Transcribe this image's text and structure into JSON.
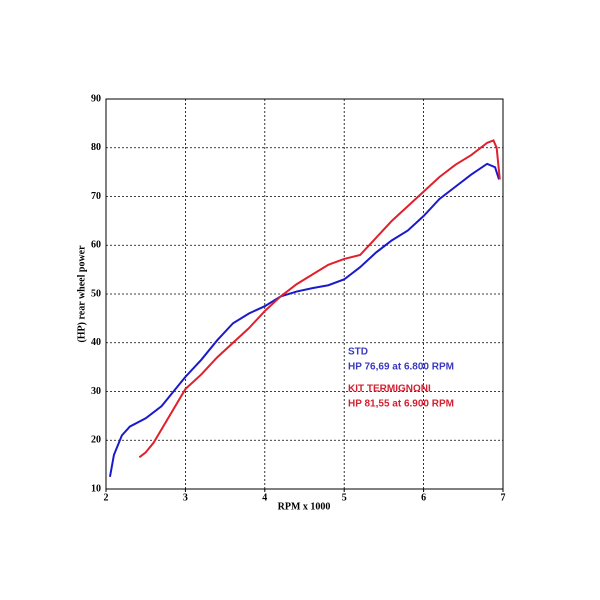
{
  "chart_data": {
    "type": "line",
    "x_label": "RPM x 1000",
    "y_label": "(HP) rear wheel power",
    "xlim": [
      2,
      7
    ],
    "xticks": [
      2,
      3,
      4,
      5,
      6,
      7
    ],
    "ylim": [
      10,
      90
    ],
    "yticks": [
      10,
      20,
      30,
      40,
      50,
      60,
      70,
      80,
      90
    ],
    "grid": true,
    "series": [
      {
        "name": "STD",
        "color": "#1a1acc",
        "x": [
          2.05,
          2.1,
          2.2,
          2.3,
          2.5,
          2.7,
          2.9,
          3.0,
          3.2,
          3.4,
          3.6,
          3.8,
          4.0,
          4.2,
          4.4,
          4.6,
          4.8,
          5.0,
          5.2,
          5.4,
          5.6,
          5.8,
          6.0,
          6.2,
          6.4,
          6.6,
          6.8,
          6.9,
          6.95
        ],
        "values": [
          12.5,
          17,
          21,
          22.8,
          24.5,
          27,
          31,
          33,
          36.5,
          40.5,
          44,
          46,
          47.5,
          49.5,
          50.5,
          51.2,
          51.8,
          53,
          55.5,
          58.5,
          61,
          63,
          66,
          69.5,
          72,
          74.5,
          76.7,
          76,
          73.5
        ]
      },
      {
        "name": "KIT TERMIGNONI",
        "color": "#e0202c",
        "x": [
          2.42,
          2.5,
          2.6,
          2.8,
          3.0,
          3.2,
          3.4,
          3.6,
          3.8,
          4.0,
          4.2,
          4.4,
          4.6,
          4.8,
          5.0,
          5.2,
          5.4,
          5.6,
          5.8,
          6.0,
          6.2,
          6.4,
          6.6,
          6.8,
          6.88,
          6.92,
          6.96
        ],
        "values": [
          16.5,
          17.5,
          19.5,
          25,
          30.5,
          33.5,
          37,
          40,
          43,
          46.5,
          49.5,
          52,
          54,
          56,
          57.2,
          58,
          61.5,
          65,
          68,
          71,
          74,
          76.5,
          78.5,
          81,
          81.5,
          80,
          73.5
        ]
      }
    ],
    "annotations": [
      {
        "text": "STD",
        "color": "#3a3ac0"
      },
      {
        "text": "HP 76,69 at 6.800 RPM",
        "color": "#3a3ac0"
      },
      {
        "text": "KIT TERMIGNONI",
        "color": "#d42030"
      },
      {
        "text": "HP 81,55 at 6.900 RPM",
        "color": "#d42030"
      }
    ]
  }
}
